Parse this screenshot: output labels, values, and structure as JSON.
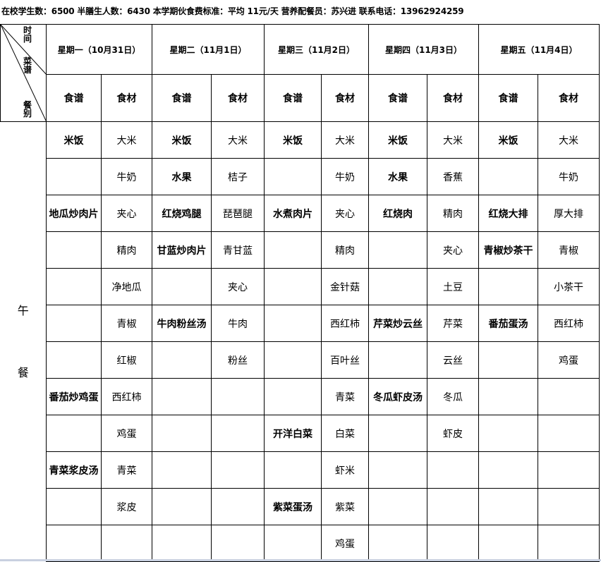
{
  "info_line": "在校学生数：6500 半膳生人数：6430  本学期伙食费标准：平均 11元/天 营养配餐员：苏兴进  联系电话：13962924259",
  "corner": {
    "time": [
      "时",
      "间"
    ],
    "menu": [
      "菜",
      "谱"
    ],
    "meal": [
      "餐",
      "别"
    ]
  },
  "days": [
    "星期一（10月31日）",
    "星期二（11月1日）",
    "星期三（11月2日）",
    "星期四（11月3日）",
    "星期五（11月4日）"
  ],
  "sub_headers": {
    "recipe": "食谱",
    "ingredient": "食材"
  },
  "meal_label": [
    "午",
    "餐"
  ],
  "rows": [
    [
      "米饭",
      "大米",
      "米饭",
      "大米",
      "米饭",
      "大米",
      "米饭",
      "大米",
      "米饭",
      "大米"
    ],
    [
      "",
      "牛奶",
      "水果",
      "桔子",
      "",
      "牛奶",
      "水果",
      "香蕉",
      "",
      "牛奶"
    ],
    [
      "地瓜炒肉片",
      "夹心",
      "红烧鸡腿",
      "琵琶腿",
      "水煮肉片",
      "夹心",
      "红烧肉",
      "精肉",
      "红烧大排",
      "厚大排"
    ],
    [
      "",
      "精肉",
      "甘蓝炒肉片",
      "青甘蓝",
      "",
      "精肉",
      "",
      "夹心",
      "青椒炒茶干",
      "青椒"
    ],
    [
      "",
      "净地瓜",
      "",
      "夹心",
      "",
      "金针菇",
      "",
      "土豆",
      "",
      "小茶干"
    ],
    [
      "",
      "青椒",
      "牛肉粉丝汤",
      "牛肉",
      "",
      "西红柿",
      "芹菜炒云丝",
      "芹菜",
      "番茄蛋汤",
      "西红柿"
    ],
    [
      "",
      "红椒",
      "",
      "粉丝",
      "",
      "百叶丝",
      "",
      "云丝",
      "",
      "鸡蛋"
    ],
    [
      "番茄炒鸡蛋",
      "西红柿",
      "",
      "",
      "",
      "青菜",
      "冬瓜虾皮汤",
      "冬瓜",
      "",
      ""
    ],
    [
      "",
      "鸡蛋",
      "",
      "",
      "开洋白菜",
      "白菜",
      "",
      "虾皮",
      "",
      ""
    ],
    [
      "青菜浆皮汤",
      "青菜",
      "",
      "",
      "",
      "虾米",
      "",
      "",
      "",
      ""
    ],
    [
      "",
      "浆皮",
      "",
      "",
      "紫菜蛋汤",
      "紫菜",
      "",
      "",
      "",
      ""
    ],
    [
      "",
      "",
      "",
      "",
      "",
      "鸡蛋",
      "",
      "",
      "",
      ""
    ]
  ]
}
